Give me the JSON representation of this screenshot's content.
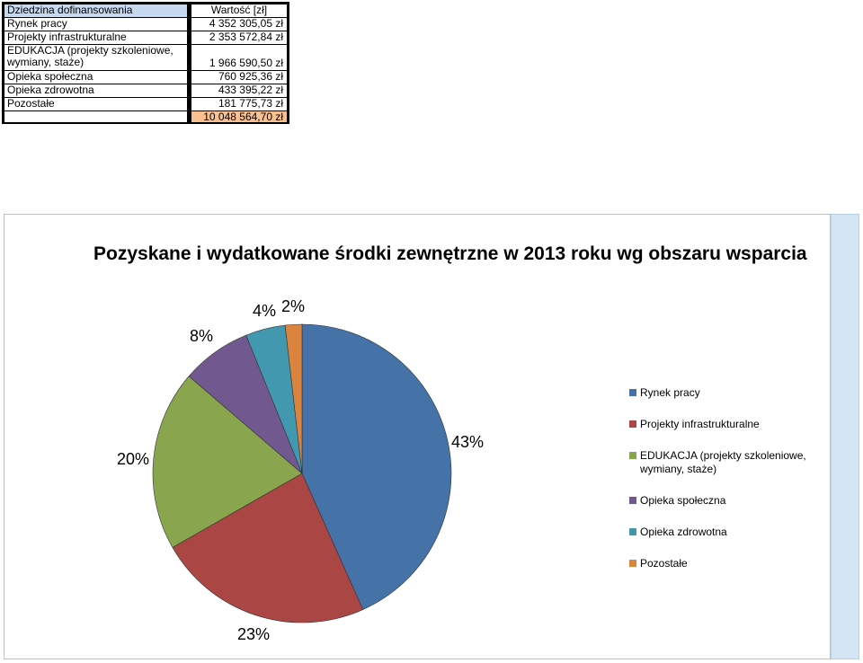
{
  "table": {
    "header": {
      "category": "Dziedzina dofinansowania",
      "value": "Wartość [zł]"
    },
    "rows": [
      {
        "category": "Rynek pracy",
        "value": "4 352 305,05 zł"
      },
      {
        "category": "Projekty infrastrukturalne",
        "value": "2 353 572,84 zł"
      },
      {
        "category": "EDUKACJA (projekty szkoleniowe, wymiany, staże)",
        "value": "1 966 590,50 zł"
      },
      {
        "category": "Opieka społeczna",
        "value": "760 925,36 zł"
      },
      {
        "category": "Opieka zdrowotna",
        "value": "433 395,22 zł"
      },
      {
        "category": "Pozostałe",
        "value": "181 775,73 zł"
      }
    ],
    "total": {
      "category": "",
      "value": "10 048 564,70 zł"
    }
  },
  "chart_data": {
    "type": "pie",
    "title": "Pozyskane i wydatkowane środki zewnętrzne w 2013 roku wg obszaru wsparcia",
    "categories": [
      "Rynek pracy",
      "Projekty infrastrukturalne",
      "EDUKACJA (projekty szkoleniowe, wymiany, staże)",
      "Opieka społeczna",
      "Opieka zdrowotna",
      "Pozostałe"
    ],
    "values": [
      4352305.05,
      2353572.84,
      1966590.5,
      760925.36,
      433395.22,
      181775.73
    ],
    "labels": [
      "43%",
      "23%",
      "20%",
      "8%",
      "4%",
      "2%"
    ],
    "colors": [
      "#4572a7",
      "#aa4643",
      "#89a54e",
      "#71588f",
      "#4198af",
      "#db843d"
    ],
    "legend_position": "right",
    "start_angle": "12 o'clock, clockwise"
  }
}
